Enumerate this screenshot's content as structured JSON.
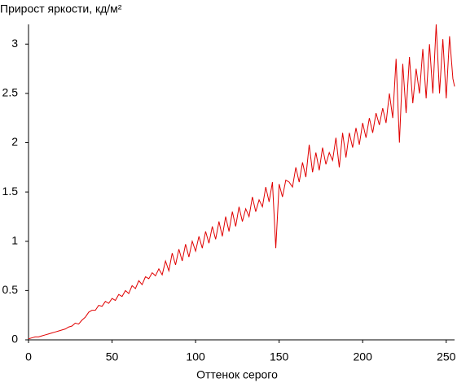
{
  "chart_data": {
    "type": "line",
    "title": "Прирост яркости, кд/м²",
    "x_label": "Оттенок серого",
    "color": "#e00000",
    "x": [
      0,
      2,
      4,
      6,
      8,
      10,
      12,
      14,
      16,
      18,
      20,
      22,
      24,
      26,
      28,
      30,
      32,
      34,
      36,
      38,
      40,
      42,
      44,
      46,
      48,
      50,
      52,
      54,
      56,
      58,
      60,
      62,
      64,
      66,
      68,
      70,
      72,
      74,
      76,
      78,
      80,
      82,
      84,
      86,
      88,
      90,
      92,
      94,
      96,
      98,
      100,
      102,
      104,
      106,
      108,
      110,
      112,
      114,
      116,
      118,
      120,
      122,
      124,
      126,
      128,
      130,
      132,
      134,
      136,
      138,
      140,
      142,
      144,
      146,
      148,
      150,
      152,
      154,
      156,
      158,
      160,
      162,
      164,
      166,
      168,
      170,
      172,
      174,
      176,
      178,
      180,
      182,
      184,
      186,
      188,
      190,
      192,
      194,
      196,
      198,
      200,
      202,
      204,
      206,
      208,
      210,
      212,
      214,
      216,
      218,
      220,
      222,
      224,
      226,
      228,
      230,
      232,
      234,
      236,
      238,
      240,
      242,
      244,
      246,
      248,
      250,
      252,
      254,
      255
    ],
    "values": [
      0.01,
      0.02,
      0.03,
      0.03,
      0.04,
      0.05,
      0.06,
      0.07,
      0.08,
      0.09,
      0.1,
      0.11,
      0.13,
      0.14,
      0.17,
      0.16,
      0.2,
      0.23,
      0.28,
      0.3,
      0.3,
      0.35,
      0.34,
      0.39,
      0.37,
      0.42,
      0.4,
      0.46,
      0.44,
      0.5,
      0.47,
      0.55,
      0.52,
      0.6,
      0.56,
      0.64,
      0.62,
      0.68,
      0.65,
      0.72,
      0.66,
      0.8,
      0.7,
      0.88,
      0.76,
      0.92,
      0.8,
      0.97,
      0.84,
      1.0,
      0.9,
      1.05,
      0.93,
      1.1,
      0.98,
      1.15,
      1.02,
      1.2,
      1.05,
      1.25,
      1.1,
      1.3,
      1.15,
      1.35,
      1.2,
      1.33,
      1.25,
      1.45,
      1.3,
      1.42,
      1.35,
      1.55,
      1.4,
      1.6,
      0.93,
      1.58,
      1.45,
      1.62,
      1.6,
      1.55,
      1.75,
      1.6,
      1.8,
      1.65,
      1.98,
      1.7,
      1.9,
      1.72,
      1.95,
      1.78,
      1.9,
      1.82,
      2.05,
      1.75,
      2.1,
      1.85,
      2.1,
      1.95,
      2.15,
      1.98,
      2.2,
      2.05,
      2.25,
      2.1,
      2.3,
      2.18,
      2.35,
      2.2,
      2.5,
      2.25,
      2.85,
      2.0,
      2.8,
      2.3,
      2.87,
      2.4,
      2.75,
      2.5,
      2.95,
      2.45,
      3.0,
      2.5,
      3.2,
      2.5,
      3.05,
      2.45,
      3.08,
      2.65,
      2.57
    ],
    "xlim": [
      0,
      255
    ],
    "ylim": [
      0,
      3.2
    ],
    "xticks": [
      0,
      50,
      100,
      150,
      200,
      250
    ],
    "yticks": [
      0,
      0.5,
      1,
      1.5,
      2,
      2.5,
      3
    ]
  }
}
